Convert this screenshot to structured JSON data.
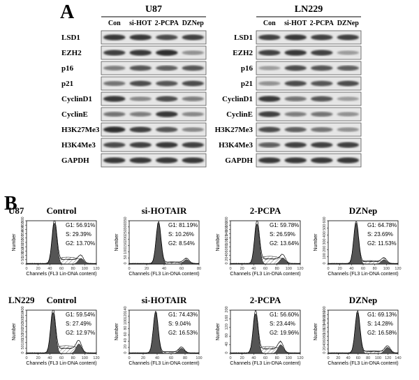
{
  "panel_a": {
    "letter": "A",
    "blots": [
      {
        "cell_line": "U87",
        "lanes": [
          "Con",
          "si-HOT",
          "2-PCPA",
          "DZNep"
        ],
        "rows": [
          {
            "protein": "LSD1",
            "levels": [
              0.9,
              0.9,
              0.8,
              0.85
            ]
          },
          {
            "protein": "EZH2",
            "levels": [
              0.85,
              0.9,
              0.95,
              0.45
            ]
          },
          {
            "protein": "p16",
            "levels": [
              0.55,
              0.75,
              0.7,
              0.75
            ]
          },
          {
            "protein": "p21",
            "levels": [
              0.6,
              0.8,
              0.75,
              0.8
            ]
          },
          {
            "protein": "CyclinD1",
            "levels": [
              0.9,
              0.5,
              0.8,
              0.55
            ]
          },
          {
            "protein": "CyclinE",
            "levels": [
              0.6,
              0.55,
              0.9,
              0.5
            ]
          },
          {
            "protein": "H3K27Me3",
            "levels": [
              0.95,
              0.85,
              0.75,
              0.5
            ]
          },
          {
            "protein": "H3K4Me3",
            "levels": [
              0.8,
              0.85,
              0.9,
              0.85
            ]
          },
          {
            "protein": "GAPDH",
            "levels": [
              0.9,
              0.9,
              0.9,
              0.9
            ]
          }
        ]
      },
      {
        "cell_line": "LN229",
        "lanes": [
          "Con",
          "si-HOT",
          "2-PCPA",
          "DZNep"
        ],
        "rows": [
          {
            "protein": "LSD1",
            "levels": [
              0.85,
              0.9,
              0.85,
              0.85
            ]
          },
          {
            "protein": "EZH2",
            "levels": [
              0.85,
              0.9,
              0.85,
              0.4
            ]
          },
          {
            "protein": "p16",
            "levels": [
              0.4,
              0.8,
              0.75,
              0.7
            ]
          },
          {
            "protein": "p21",
            "levels": [
              0.45,
              0.8,
              0.75,
              0.8
            ]
          },
          {
            "protein": "CyclinD1",
            "levels": [
              0.9,
              0.6,
              0.75,
              0.4
            ]
          },
          {
            "protein": "CyclinE",
            "levels": [
              0.85,
              0.55,
              0.6,
              0.45
            ]
          },
          {
            "protein": "H3K27Me3",
            "levels": [
              0.8,
              0.7,
              0.6,
              0.45
            ]
          },
          {
            "protein": "H3K4Me3",
            "levels": [
              0.7,
              0.85,
              0.85,
              0.85
            ]
          },
          {
            "protein": "GAPDH",
            "levels": [
              0.9,
              0.9,
              0.9,
              0.9
            ]
          }
        ]
      }
    ]
  },
  "panel_b": {
    "letter": "B",
    "xlabel": "Channels (FL3 Lin-DNA content)",
    "ylabel": "Number",
    "rows": [
      {
        "cell_line": "U87",
        "plots": [
          {
            "title": "Control",
            "G1": "56.91%",
            "S": "29.39%",
            "G2": "13.70%",
            "xticks": [
              "0",
              "20",
              "40",
              "60",
              "80",
              "100",
              "120"
            ],
            "yticks": [
              "0",
              "50",
              "100",
              "150",
              "200",
              "250",
              "300",
              "350",
              "400",
              "450",
              "500"
            ],
            "g1_pos": 0.4,
            "g2_pos": 0.78,
            "g1_h": 0.95,
            "g2_h": 0.13,
            "s_h": 0.16
          },
          {
            "title": "si-HOTAIR",
            "G1": "81.19%",
            "S": "10.26%",
            "G2": "8.54%",
            "xticks": [
              "0",
              "20",
              "40",
              "60",
              "80"
            ],
            "yticks": [
              "0",
              "50",
              "100",
              "150",
              "200",
              "250",
              "300",
              "350"
            ],
            "g1_pos": 0.42,
            "g2_pos": 0.82,
            "g1_h": 0.95,
            "g2_h": 0.1,
            "s_h": 0.05
          },
          {
            "title": "2-PCPA",
            "G1": "59.78%",
            "S": "26.59%",
            "G2": "13.64%",
            "xticks": [
              "0",
              "20",
              "40",
              "60",
              "80",
              "100",
              "120"
            ],
            "yticks": [
              "0",
              "20",
              "40",
              "60",
              "80",
              "100",
              "120",
              "140",
              "160",
              "180",
              "200"
            ],
            "g1_pos": 0.38,
            "g2_pos": 0.75,
            "g1_h": 0.93,
            "g2_h": 0.14,
            "s_h": 0.18
          },
          {
            "title": "DZNep",
            "G1": "64.78%",
            "S": "23.69%",
            "G2": "11.53%",
            "xticks": [
              "0",
              "20",
              "40",
              "60",
              "80",
              "100",
              "120"
            ],
            "yticks": [
              "0",
              "100",
              "200",
              "300",
              "400",
              "500",
              "600"
            ],
            "g1_pos": 0.4,
            "g2_pos": 0.8,
            "g1_h": 0.95,
            "g2_h": 0.1,
            "s_h": 0.08
          }
        ]
      },
      {
        "cell_line": "LN229",
        "plots": [
          {
            "title": "Control",
            "G1": "59.54%",
            "S": "27.49%",
            "G2": "12.97%",
            "xticks": [
              "0",
              "20",
              "40",
              "60",
              "80",
              "100",
              "120"
            ],
            "yticks": [
              "0",
              "50",
              "100",
              "150",
              "200",
              "250",
              "300",
              "350",
              "400"
            ],
            "g1_pos": 0.38,
            "g2_pos": 0.75,
            "g1_h": 0.95,
            "g2_h": 0.22,
            "s_h": 0.18
          },
          {
            "title": "si-HOTAIR",
            "G1": "74.43%",
            "S": "9.04%",
            "G2": "16.53%",
            "xticks": [
              "0",
              "20",
              "40",
              "60",
              "80",
              "100"
            ],
            "yticks": [
              "0",
              "20",
              "40",
              "60",
              "80",
              "100",
              "120",
              "140"
            ],
            "g1_pos": 0.38,
            "g2_pos": 0.75,
            "g1_h": 0.95,
            "g2_h": 0.12,
            "s_h": 0.04
          },
          {
            "title": "2-PCPA",
            "G1": "56.60%",
            "S": "23.44%",
            "G2": "19.96%",
            "xticks": [
              "0",
              "20",
              "40",
              "60",
              "80",
              "100",
              "120"
            ],
            "yticks": [
              "0",
              "40",
              "80",
              "120",
              "160",
              "200"
            ],
            "g1_pos": 0.36,
            "g2_pos": 0.72,
            "g1_h": 0.92,
            "g2_h": 0.2,
            "s_h": 0.16
          },
          {
            "title": "DZNep",
            "G1": "69.13%",
            "S": "14.28%",
            "G2": "16.58%",
            "xticks": [
              "0",
              "20",
              "40",
              "60",
              "80",
              "100",
              "120",
              "140"
            ],
            "yticks": [
              "0",
              "20",
              "40",
              "60",
              "80",
              "100",
              "120",
              "140",
              "160",
              "180",
              "200"
            ],
            "g1_pos": 0.42,
            "g2_pos": 0.85,
            "g1_h": 0.95,
            "g2_h": 0.14,
            "s_h": 0.06
          }
        ]
      }
    ]
  }
}
